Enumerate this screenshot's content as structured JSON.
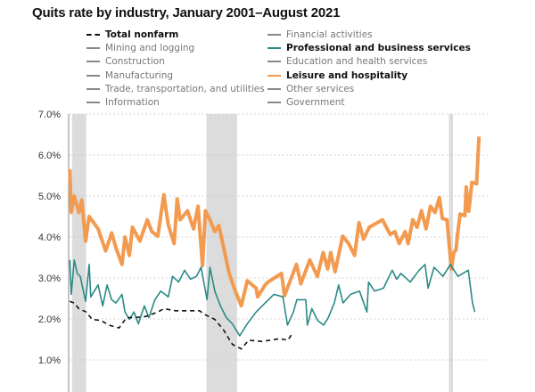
{
  "chart_data": {
    "type": "line",
    "title": "Quits rate by industry, January 2001–August 2021",
    "xlabel": "",
    "ylabel": "",
    "xlim": [
      2001.0,
      2021.6
    ],
    "ylim": [
      0,
      7
    ],
    "yticks": [
      1,
      2,
      3,
      4,
      5,
      6,
      7
    ],
    "ytick_labels": [
      "1.0%",
      "2.0%",
      "3.0%",
      "4.0%",
      "5.0%",
      "6.0%",
      "7.0%"
    ],
    "grid": "horizontal dotted",
    "legend_placement": "top",
    "recessions": [
      [
        2001.17,
        2001.88
      ],
      [
        2007.92,
        2009.46
      ],
      [
        2020.1,
        2020.3
      ]
    ],
    "legend": [
      {
        "label": "Total nonfarm",
        "highlight": true,
        "style": "dashed",
        "color": "#111111"
      },
      {
        "label": "Mining and logging",
        "highlight": false,
        "color": "#888888"
      },
      {
        "label": "Construction",
        "highlight": false,
        "color": "#888888"
      },
      {
        "label": "Manufacturing",
        "highlight": false,
        "color": "#888888"
      },
      {
        "label": "Trade, transportation, and utilities",
        "highlight": false,
        "color": "#888888"
      },
      {
        "label": "Information",
        "highlight": false,
        "color": "#888888"
      },
      {
        "label": "Financial activities",
        "highlight": false,
        "color": "#888888"
      },
      {
        "label": "Professional and business services",
        "highlight": true,
        "color": "#2a8a86"
      },
      {
        "label": "Education and health services",
        "highlight": false,
        "color": "#888888"
      },
      {
        "label": "Leisure and hospitality",
        "highlight": true,
        "color": "#f29a4f"
      },
      {
        "label": "Other services",
        "highlight": false,
        "color": "#888888"
      },
      {
        "label": "Government",
        "highlight": false,
        "color": "#888888"
      }
    ],
    "series": [
      {
        "name": "Leisure and hospitality",
        "color": "#f29a4f",
        "width": 4,
        "points": [
          [
            2001.06,
            5.65
          ],
          [
            2001.13,
            4.6
          ],
          [
            2001.28,
            5.0
          ],
          [
            2001.51,
            4.6
          ],
          [
            2001.66,
            4.9
          ],
          [
            2001.85,
            3.9
          ],
          [
            2002.03,
            4.5
          ],
          [
            2002.48,
            4.2
          ],
          [
            2002.86,
            3.66
          ],
          [
            2003.16,
            4.1
          ],
          [
            2003.38,
            3.73
          ],
          [
            2003.68,
            3.33
          ],
          [
            2003.83,
            4.0
          ],
          [
            2004.05,
            3.55
          ],
          [
            2004.2,
            4.24
          ],
          [
            2004.58,
            3.9
          ],
          [
            2004.95,
            4.42
          ],
          [
            2005.18,
            4.13
          ],
          [
            2005.48,
            4.02
          ],
          [
            2005.78,
            5.03
          ],
          [
            2006.0,
            4.3
          ],
          [
            2006.3,
            3.84
          ],
          [
            2006.45,
            4.93
          ],
          [
            2006.6,
            4.42
          ],
          [
            2006.97,
            4.64
          ],
          [
            2007.27,
            4.2
          ],
          [
            2007.5,
            4.75
          ],
          [
            2007.72,
            3.3
          ],
          [
            2007.87,
            4.64
          ],
          [
            2008.1,
            4.42
          ],
          [
            2008.34,
            4.13
          ],
          [
            2008.54,
            4.28
          ],
          [
            2008.77,
            3.77
          ],
          [
            2009.07,
            3.1
          ],
          [
            2009.37,
            2.68
          ],
          [
            2009.67,
            2.32
          ],
          [
            2009.97,
            2.93
          ],
          [
            2010.42,
            2.75
          ],
          [
            2010.49,
            2.54
          ],
          [
            2010.87,
            2.83
          ],
          [
            2011.01,
            2.9
          ],
          [
            2011.69,
            3.11
          ],
          [
            2011.84,
            2.57
          ],
          [
            2012.44,
            3.33
          ],
          [
            2012.66,
            2.86
          ],
          [
            2013.11,
            3.44
          ],
          [
            2013.49,
            3.04
          ],
          [
            2013.78,
            3.62
          ],
          [
            2014.01,
            3.22
          ],
          [
            2014.16,
            3.62
          ],
          [
            2014.38,
            3.15
          ],
          [
            2014.76,
            4.02
          ],
          [
            2015.06,
            3.84
          ],
          [
            2015.36,
            3.55
          ],
          [
            2015.58,
            4.35
          ],
          [
            2015.81,
            3.95
          ],
          [
            2016.1,
            4.24
          ],
          [
            2016.76,
            4.42
          ],
          [
            2017.15,
            4.06
          ],
          [
            2017.38,
            4.13
          ],
          [
            2017.6,
            3.84
          ],
          [
            2017.9,
            4.13
          ],
          [
            2018.05,
            3.84
          ],
          [
            2018.28,
            4.42
          ],
          [
            2018.5,
            4.24
          ],
          [
            2018.72,
            4.64
          ],
          [
            2018.95,
            4.2
          ],
          [
            2019.17,
            4.75
          ],
          [
            2019.4,
            4.6
          ],
          [
            2019.62,
            4.96
          ],
          [
            2019.77,
            4.45
          ],
          [
            2020.0,
            4.42
          ],
          [
            2020.22,
            3.22
          ],
          [
            2020.34,
            3.62
          ],
          [
            2020.46,
            3.69
          ],
          [
            2020.52,
            4.02
          ],
          [
            2020.66,
            4.56
          ],
          [
            2020.9,
            4.52
          ],
          [
            2020.97,
            5.22
          ],
          [
            2021.1,
            4.63
          ],
          [
            2021.25,
            5.33
          ],
          [
            2021.49,
            5.3
          ],
          [
            2021.61,
            6.45
          ]
        ]
      },
      {
        "name": "Professional and business services",
        "color": "#2a8a86",
        "width": 1.6,
        "points": [
          [
            2001.06,
            3.44
          ],
          [
            2001.13,
            2.6
          ],
          [
            2001.28,
            3.44
          ],
          [
            2001.43,
            3.11
          ],
          [
            2001.58,
            3.04
          ],
          [
            2001.85,
            2.43
          ],
          [
            2002.03,
            3.33
          ],
          [
            2002.11,
            2.54
          ],
          [
            2002.48,
            2.83
          ],
          [
            2002.71,
            2.32
          ],
          [
            2002.93,
            2.83
          ],
          [
            2003.16,
            2.47
          ],
          [
            2003.38,
            2.39
          ],
          [
            2003.68,
            2.6
          ],
          [
            2003.83,
            2.17
          ],
          [
            2004.05,
            1.99
          ],
          [
            2004.28,
            2.17
          ],
          [
            2004.5,
            1.88
          ],
          [
            2004.8,
            2.32
          ],
          [
            2005.03,
            2.03
          ],
          [
            2005.33,
            2.47
          ],
          [
            2005.63,
            2.68
          ],
          [
            2006.0,
            2.54
          ],
          [
            2006.22,
            3.04
          ],
          [
            2006.52,
            2.9
          ],
          [
            2006.82,
            3.19
          ],
          [
            2007.12,
            2.97
          ],
          [
            2007.42,
            3.04
          ],
          [
            2007.65,
            3.26
          ],
          [
            2007.95,
            2.47
          ],
          [
            2008.1,
            3.26
          ],
          [
            2008.34,
            2.68
          ],
          [
            2008.62,
            2.32
          ],
          [
            2008.92,
            2.03
          ],
          [
            2009.22,
            1.88
          ],
          [
            2009.59,
            1.59
          ],
          [
            2009.97,
            1.88
          ],
          [
            2010.42,
            2.17
          ],
          [
            2010.87,
            2.39
          ],
          [
            2011.31,
            2.6
          ],
          [
            2011.76,
            2.54
          ],
          [
            2011.99,
            1.85
          ],
          [
            2012.29,
            2.17
          ],
          [
            2012.46,
            2.47
          ],
          [
            2012.91,
            2.47
          ],
          [
            2012.99,
            1.85
          ],
          [
            2013.21,
            2.25
          ],
          [
            2013.51,
            1.96
          ],
          [
            2013.81,
            1.85
          ],
          [
            2014.04,
            2.03
          ],
          [
            2014.34,
            2.39
          ],
          [
            2014.56,
            2.83
          ],
          [
            2014.78,
            2.39
          ],
          [
            2015.16,
            2.6
          ],
          [
            2015.61,
            2.68
          ],
          [
            2015.98,
            2.17
          ],
          [
            2016.06,
            2.9
          ],
          [
            2016.36,
            2.68
          ],
          [
            2016.81,
            2.75
          ],
          [
            2017.25,
            3.19
          ],
          [
            2017.47,
            2.97
          ],
          [
            2017.69,
            3.11
          ],
          [
            2018.15,
            2.9
          ],
          [
            2018.6,
            3.19
          ],
          [
            2018.9,
            3.33
          ],
          [
            2019.05,
            2.75
          ],
          [
            2019.35,
            3.26
          ],
          [
            2019.8,
            3.04
          ],
          [
            2020.17,
            3.33
          ],
          [
            2020.55,
            3.04
          ],
          [
            2021.07,
            3.19
          ],
          [
            2021.28,
            2.39
          ],
          [
            2021.4,
            2.17
          ]
        ]
      },
      {
        "name": "Total nonfarm",
        "color": "#111111",
        "width": 1.6,
        "dashed": true,
        "points": [
          [
            2001.06,
            2.43
          ],
          [
            2001.28,
            2.39
          ],
          [
            2001.51,
            2.25
          ],
          [
            2001.88,
            2.17
          ],
          [
            2002.18,
            1.99
          ],
          [
            2002.63,
            1.96
          ],
          [
            2003.01,
            1.85
          ],
          [
            2003.53,
            1.78
          ],
          [
            2003.9,
            2.03
          ],
          [
            2004.28,
            2.03
          ],
          [
            2004.88,
            2.06
          ],
          [
            2005.48,
            2.17
          ],
          [
            2005.78,
            2.25
          ],
          [
            2006.37,
            2.2
          ],
          [
            2007.12,
            2.2
          ],
          [
            2007.57,
            2.2
          ],
          [
            2007.87,
            2.1
          ],
          [
            2008.34,
            1.99
          ],
          [
            2008.77,
            1.74
          ],
          [
            2009.22,
            1.38
          ],
          [
            2009.67,
            1.27
          ],
          [
            2010.04,
            1.48
          ],
          [
            2010.72,
            1.45
          ],
          [
            2011.61,
            1.52
          ],
          [
            2012.21,
            1.63
          ],
          [
            2012.01,
            1.48
          ]
        ]
      }
    ]
  }
}
